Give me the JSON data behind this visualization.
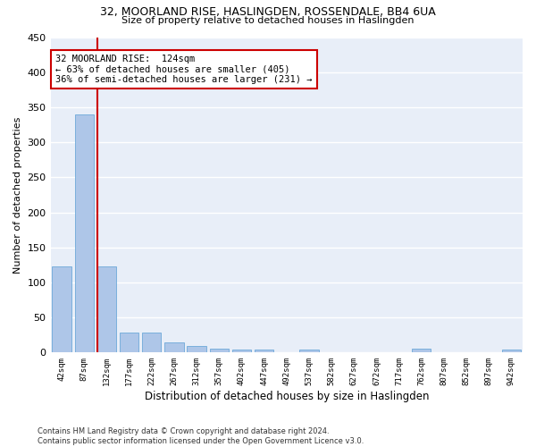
{
  "title1": "32, MOORLAND RISE, HASLINGDEN, ROSSENDALE, BB4 6UA",
  "title2": "Size of property relative to detached houses in Haslingden",
  "xlabel": "Distribution of detached houses by size in Haslingden",
  "ylabel": "Number of detached properties",
  "footnote": "Contains HM Land Registry data © Crown copyright and database right 2024.\nContains public sector information licensed under the Open Government Licence v3.0.",
  "bar_labels": [
    "42sqm",
    "87sqm",
    "132sqm",
    "177sqm",
    "222sqm",
    "267sqm",
    "312sqm",
    "357sqm",
    "402sqm",
    "447sqm",
    "492sqm",
    "537sqm",
    "582sqm",
    "627sqm",
    "672sqm",
    "717sqm",
    "762sqm",
    "807sqm",
    "852sqm",
    "897sqm",
    "942sqm"
  ],
  "bar_values": [
    123,
    340,
    123,
    29,
    29,
    15,
    9,
    6,
    4,
    4,
    0,
    4,
    0,
    0,
    0,
    0,
    5,
    0,
    0,
    0,
    4
  ],
  "bar_color": "#aec6e8",
  "bar_edge_color": "#5a9fd4",
  "background_color": "#e8eef8",
  "grid_color": "#ffffff",
  "annotation_line1": "32 MOORLAND RISE:  124sqm",
  "annotation_line2": "← 63% of detached houses are smaller (405)",
  "annotation_line3": "36% of semi-detached houses are larger (231) →",
  "annotation_box_color": "#cc0000",
  "property_line_bar_index": 2,
  "ylim": [
    0,
    450
  ],
  "yticks": [
    0,
    50,
    100,
    150,
    200,
    250,
    300,
    350,
    400,
    450
  ]
}
